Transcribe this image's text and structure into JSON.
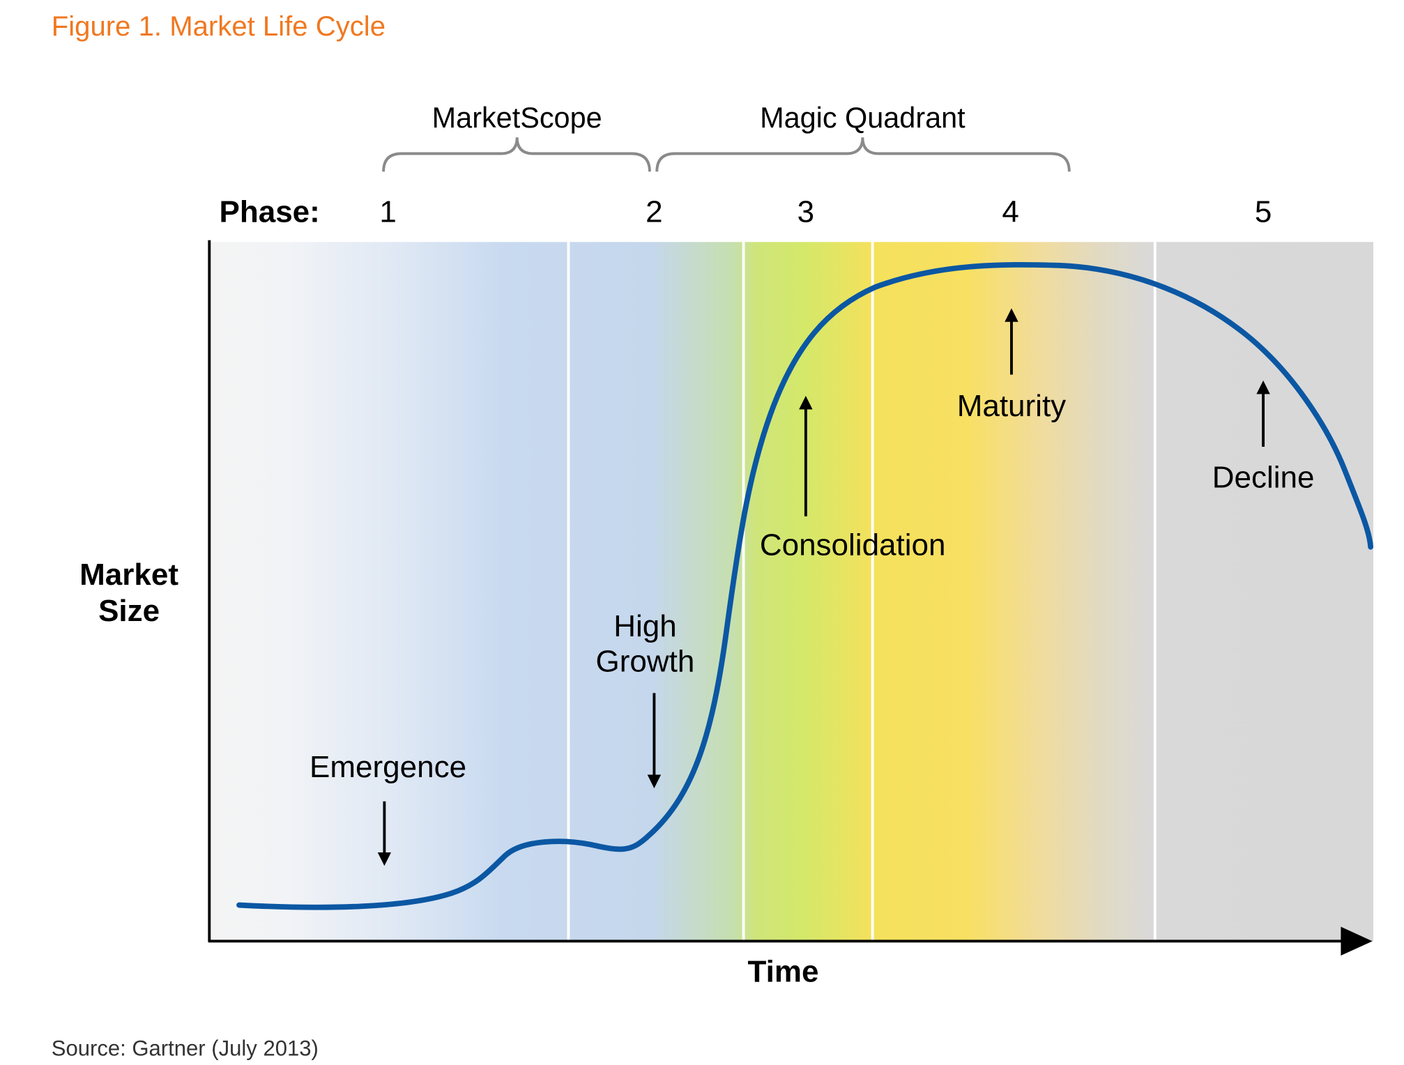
{
  "figure": {
    "title": "Figure 1. Market Life Cycle",
    "source": "Source: Gartner (July 2013)"
  },
  "colors": {
    "title": "#f07820",
    "curve": "#0b57a3",
    "axis": "#000000",
    "bracket": "#8a8a8a",
    "band_white": "#f3f3f3",
    "band_blue": "#c6d8ee",
    "band_green": "#cfe46c",
    "band_yellow": "#f7df5e",
    "band_gray": "#d8d8d8"
  },
  "axes": {
    "y_label_line1": "Market",
    "y_label_line2": "Size",
    "x_label": "Time"
  },
  "phase_label": "Phase:",
  "phases": [
    "1",
    "2",
    "3",
    "4",
    "5"
  ],
  "brackets": {
    "left": "MarketScope",
    "right": "Magic Quadrant"
  },
  "stages": {
    "emergence": "Emergence",
    "high_growth_line1": "High",
    "high_growth_line2": "Growth",
    "consolidation": "Consolidation",
    "maturity": "Maturity",
    "decline": "Decline"
  }
}
